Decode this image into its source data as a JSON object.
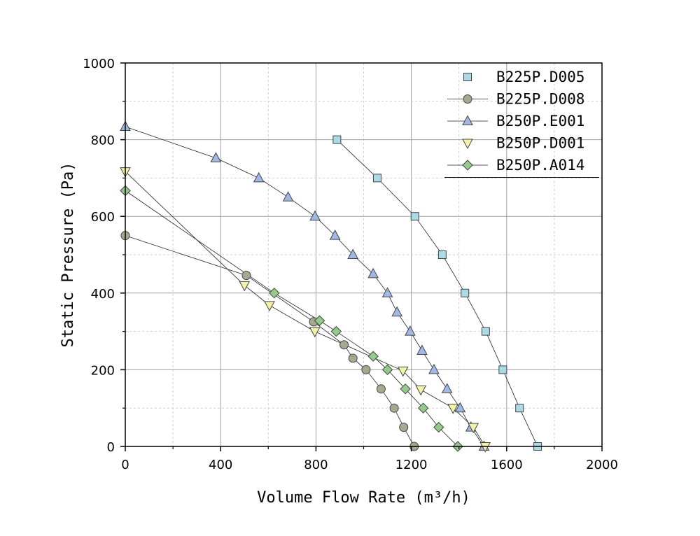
{
  "chart_data": {
    "type": "scatter",
    "xlabel": "Volume Flow Rate (m³/h)",
    "ylabel": "Static Pressure (Pa)",
    "xlim": [
      0,
      2000
    ],
    "ylim": [
      0,
      1000
    ],
    "xticks": [
      "0",
      "400",
      "800",
      "1200",
      "1600",
      "2000"
    ],
    "yticks": [
      "0",
      "200",
      "400",
      "600",
      "800",
      "1000"
    ],
    "grid": true,
    "legend": "top-right",
    "series": [
      {
        "name": "B225P.D005",
        "marker": "square",
        "color": "#a9dbe6",
        "x": [
          888,
          1057,
          1215,
          1330,
          1425,
          1512,
          1584,
          1654,
          1730
        ],
        "y": [
          800,
          700,
          600,
          500,
          400,
          300,
          200,
          100,
          0
        ]
      },
      {
        "name": "B225P.D008",
        "marker": "circle",
        "color": "#a8a88e",
        "x": [
          0,
          508,
          790,
          918,
          955,
          1010,
          1073,
          1128,
          1168,
          1212
        ],
        "y": [
          550,
          446,
          325,
          265,
          230,
          200,
          150,
          100,
          50,
          0
        ]
      },
      {
        "name": "B250P.E001",
        "marker": "triangle-up",
        "color": "#9fb8e8",
        "x": [
          0,
          380,
          560,
          683,
          796,
          880,
          955,
          1040,
          1100,
          1140,
          1195,
          1245,
          1295,
          1350,
          1405,
          1450,
          1505
        ],
        "y": [
          834,
          752,
          700,
          650,
          600,
          550,
          500,
          450,
          400,
          350,
          300,
          250,
          200,
          150,
          100,
          50,
          0
        ]
      },
      {
        "name": "B250P.D001",
        "marker": "triangle-down",
        "color": "#f3f3a6",
        "x": [
          0,
          500,
          605,
          795,
          1165,
          1240,
          1375,
          1460,
          1510
        ],
        "y": [
          717,
          420,
          368,
          300,
          197,
          148,
          100,
          50,
          0
        ]
      },
      {
        "name": "B250P.A014",
        "marker": "diamond",
        "color": "#93cc88",
        "x": [
          0,
          625,
          815,
          885,
          1040,
          1100,
          1175,
          1250,
          1315,
          1395
        ],
        "y": [
          667,
          400,
          328,
          300,
          235,
          200,
          150,
          100,
          50,
          0
        ]
      }
    ]
  }
}
